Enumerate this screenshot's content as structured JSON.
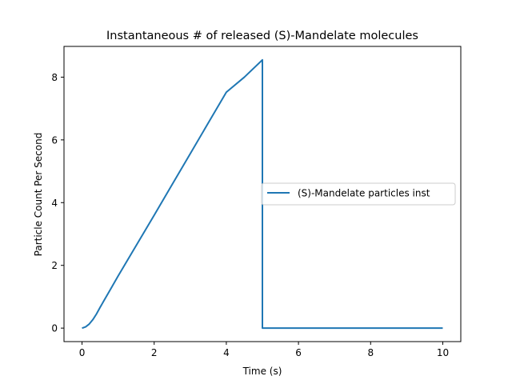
{
  "chart_data": {
    "type": "line",
    "title": "Instantaneous # of released (S)-Mandelate molecules",
    "xlabel": "Time (s)",
    "ylabel": "Particle Count Per Second",
    "xlim": [
      -0.5,
      10.5
    ],
    "ylim": [
      -0.43,
      8.98
    ],
    "xticks": [
      0,
      2,
      4,
      6,
      8,
      10
    ],
    "yticks": [
      0,
      2,
      4,
      6,
      8
    ],
    "grid": false,
    "legend_position": "center-right",
    "series": [
      {
        "name": "(S)-Mandelate particles inst",
        "color": "#1f77b4",
        "x": [
          0,
          0.1,
          0.2,
          0.3,
          0.4,
          0.5,
          0.6,
          0.8,
          1.0,
          1.5,
          2.0,
          2.5,
          3.0,
          3.5,
          4.0,
          4.5,
          5.0,
          5.0,
          5.5,
          6.0,
          7.0,
          8.0,
          9.0,
          10.0
        ],
        "y": [
          0.0,
          0.04,
          0.13,
          0.27,
          0.45,
          0.66,
          0.86,
          1.26,
          1.66,
          2.63,
          3.6,
          4.58,
          5.56,
          6.54,
          7.52,
          8.0,
          8.55,
          0.0,
          0.0,
          0.0,
          0.0,
          0.0,
          0.0,
          0.0
        ]
      }
    ]
  }
}
